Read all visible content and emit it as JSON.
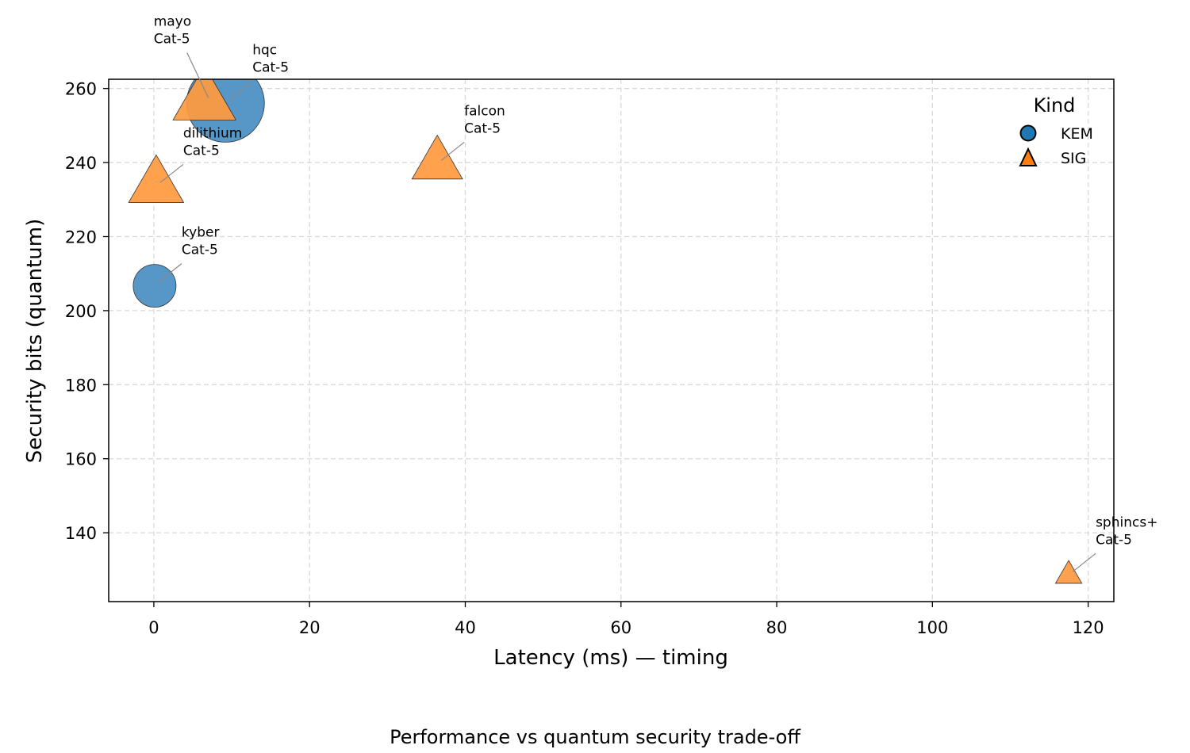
{
  "chart_data": {
    "type": "scatter",
    "caption": "Performance vs quantum security trade-off",
    "xlabel": "Latency (ms) — timing",
    "ylabel": "Security bits (quantum)",
    "xlim": [
      -5.8,
      123.3
    ],
    "ylim": [
      121.4,
      262.5
    ],
    "xticks": [
      0,
      20,
      40,
      60,
      80,
      100,
      120
    ],
    "yticks": [
      140,
      160,
      180,
      200,
      220,
      240,
      260
    ],
    "grid": true,
    "legend": {
      "title": "Kind",
      "placement": "top-right",
      "entries": [
        {
          "label": "KEM",
          "marker": "circle",
          "color": "#1f77b4"
        },
        {
          "label": "SIG",
          "marker": "triangle",
          "color": "#ff7f0e"
        }
      ]
    },
    "colors": {
      "KEM": "#4f93c6",
      "SIG": "#ff9a3f"
    },
    "points": [
      {
        "name": "hqc",
        "category": "Cat-5",
        "kind": "KEM",
        "x": 9.2,
        "y": 256,
        "size": 3.3
      },
      {
        "name": "kyber",
        "category": "Cat-5",
        "kind": "KEM",
        "x": 0.1,
        "y": 206.7,
        "size": 1.0
      },
      {
        "name": "dilithium",
        "category": "Cat-5",
        "kind": "SIG",
        "x": 0.3,
        "y": 233.5,
        "size": 1.3
      },
      {
        "name": "mayo",
        "category": "Cat-5",
        "kind": "SIG",
        "x": 6.5,
        "y": 256.4,
        "size": 1.7
      },
      {
        "name": "falcon",
        "category": "Cat-5",
        "kind": "SIG",
        "x": 36.4,
        "y": 239.5,
        "size": 1.1
      },
      {
        "name": "sphincs+",
        "category": "Cat-5",
        "kind": "SIG",
        "x": 117.5,
        "y": 128.4,
        "size": 0.3
      }
    ]
  }
}
